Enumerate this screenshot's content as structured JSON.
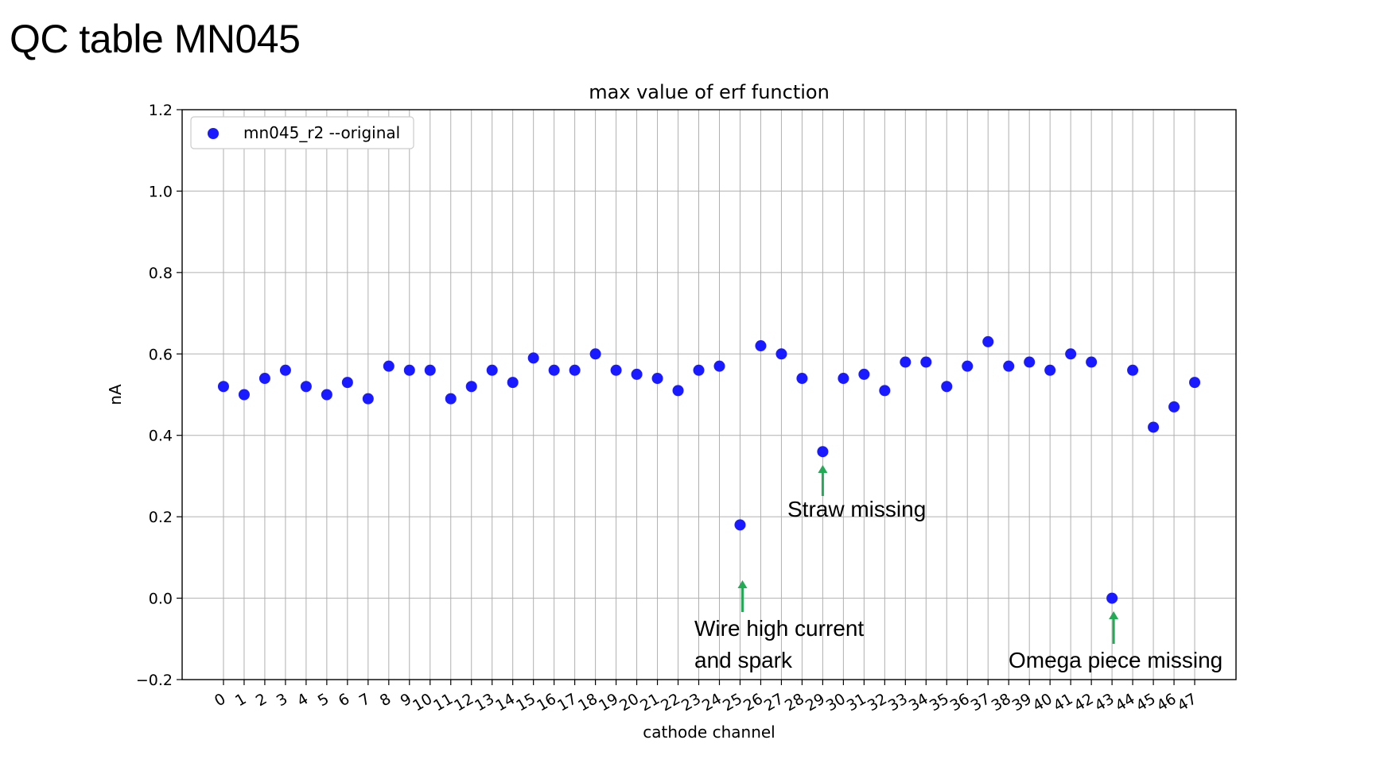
{
  "slide": {
    "title": "QC table MN045"
  },
  "chart_data": {
    "type": "scatter",
    "title": "max value of erf function",
    "xlabel": "cathode channel",
    "ylabel": "nA",
    "ylim": [
      -0.2,
      1.2
    ],
    "yticks": [
      "−0.2",
      "0.0",
      "0.2",
      "0.4",
      "0.6",
      "0.8",
      "1.0",
      "1.2"
    ],
    "xlim": [
      -2,
      49
    ],
    "grid": true,
    "legend_position": "upper-left",
    "series": [
      {
        "name": "mn045_r2 --original",
        "color": "#1a1aff",
        "x": [
          0,
          1,
          2,
          3,
          4,
          5,
          6,
          7,
          8,
          9,
          10,
          11,
          12,
          13,
          14,
          15,
          16,
          17,
          18,
          19,
          20,
          21,
          22,
          23,
          24,
          25,
          26,
          27,
          28,
          29,
          30,
          31,
          32,
          33,
          34,
          35,
          36,
          37,
          38,
          39,
          40,
          41,
          42,
          43,
          44,
          45,
          46,
          47
        ],
        "values": [
          0.52,
          0.5,
          0.54,
          0.56,
          0.52,
          0.5,
          0.53,
          0.49,
          0.57,
          0.56,
          0.56,
          0.49,
          0.52,
          0.56,
          0.53,
          0.59,
          0.56,
          0.56,
          0.6,
          0.56,
          0.55,
          0.54,
          0.51,
          0.56,
          0.57,
          0.18,
          0.62,
          0.6,
          0.54,
          0.36,
          0.54,
          0.55,
          0.51,
          0.58,
          0.58,
          0.52,
          0.57,
          0.63,
          0.57,
          0.58,
          0.56,
          0.6,
          0.58,
          0.0,
          0.56,
          0.42,
          0.47,
          0.53
        ]
      }
    ],
    "annotations": [
      {
        "line1": "Wire high current",
        "line2": "and spark",
        "channel": 25
      },
      {
        "line1": "Straw missing",
        "line2": "",
        "channel": 29
      },
      {
        "line1": "Omega piece missing",
        "line2": "",
        "channel": 43
      }
    ],
    "annotation_arrow_color": "#22aa55"
  }
}
